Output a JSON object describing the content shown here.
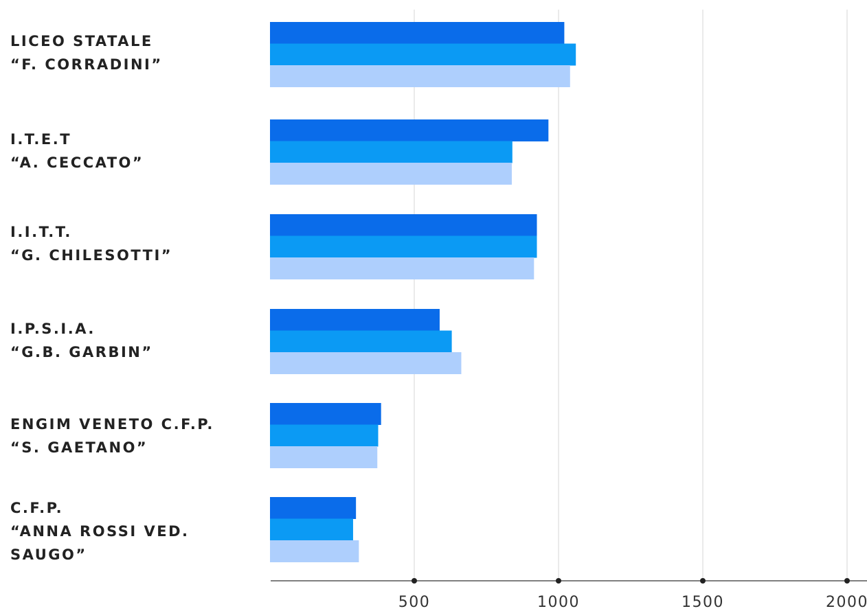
{
  "chart_data": {
    "type": "bar",
    "orientation": "horizontal",
    "categories": [
      "LICEO STATALE\n“F. CORRADINI”",
      "I.T.E.T\n“A. CECCATO”",
      "I.I.T.T.\n“G. CHILESOTTI”",
      "I.P.S.I.A.\n“G.B. GARBIN”",
      "ENGIM VENETO C.F.P.\n“S. GAETANO”",
      "C.F.P.\n“ANNA ROSSI VED.\nSAUGO”"
    ],
    "series": [
      {
        "color": "#0a6cea",
        "values": [
          1020,
          965,
          925,
          588,
          385,
          298
        ]
      },
      {
        "color": "#0b9af4",
        "values": [
          1060,
          840,
          925,
          630,
          375,
          288
        ]
      },
      {
        "color": "#aecffd",
        "values": [
          1040,
          838,
          915,
          663,
          372,
          308
        ]
      }
    ],
    "xticks": [
      500,
      1000,
      1500,
      2000
    ],
    "xtick_labels": [
      "500",
      "1000",
      "1500",
      "2000"
    ],
    "xlim": [
      0,
      2000
    ],
    "grid": true,
    "legend": false,
    "title": "",
    "xlabel": "",
    "ylabel": ""
  }
}
